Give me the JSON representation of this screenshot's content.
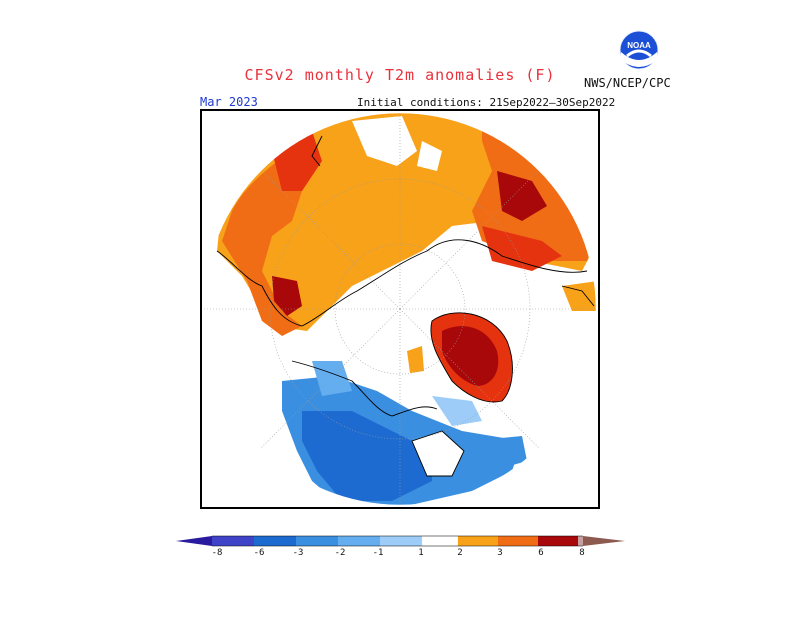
{
  "header": {
    "title": "CFSv2 monthly T2m anomalies (F)",
    "agency": "NWS/NCEP/CPC",
    "logo_text": "NOAA",
    "valid_month": "Mar 2023",
    "initial_conditions": "Initial conditions: 21Sep2022–30Sep2022"
  },
  "legend": {
    "colors": [
      "#2a1a9e",
      "#3f43c8",
      "#1d6bd1",
      "#3b8fe0",
      "#64aef0",
      "#9cccf7",
      "#ffffff",
      "#f8a21a",
      "#f06d16",
      "#e6330f",
      "#a8080a",
      "#c6a0a0",
      "#8d5a50"
    ],
    "tick_labels": [
      "-8",
      "-6",
      "-3",
      "-2",
      "-1",
      "1",
      "2",
      "3",
      "6",
      "8"
    ]
  },
  "colors": {
    "title": "#e8323c",
    "valid_month": "#1f3bd0",
    "warm_1": "#f8a21a",
    "warm_2": "#f06d16",
    "warm_3": "#e6330f",
    "warm_6": "#a8080a",
    "cold_1": "#9cccf7",
    "cold_2": "#64aef0",
    "cold_3": "#3b8fe0",
    "cold_6": "#1d6bd1"
  }
}
